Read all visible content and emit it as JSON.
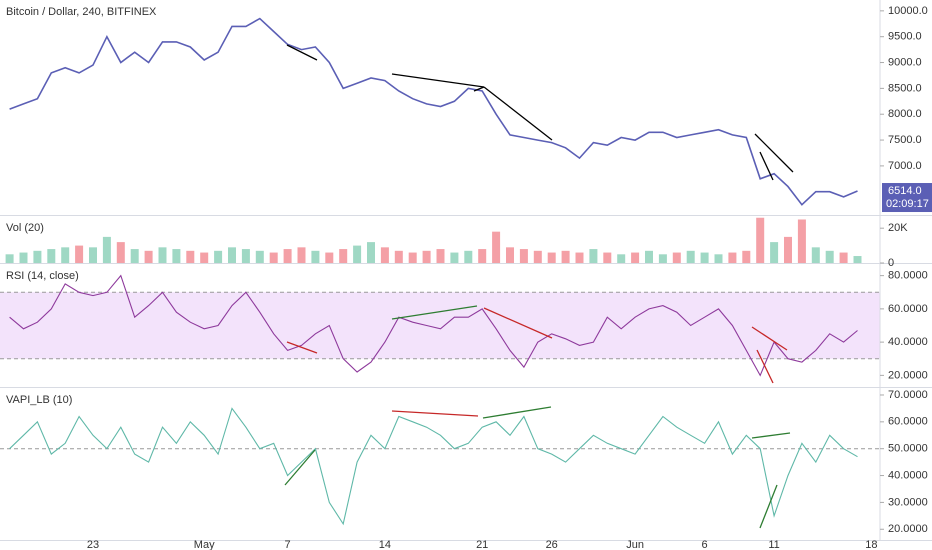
{
  "chart_data": [
    {
      "type": "line",
      "title": "Bitcoin / Dollar, 240, BITFINEX",
      "color": "#5b5fb5",
      "categories": [
        null,
        null,
        null,
        null,
        null,
        null,
        "23",
        null,
        null,
        null,
        null,
        null,
        null,
        null,
        "May",
        null,
        null,
        null,
        null,
        null,
        "7",
        null,
        null,
        null,
        null,
        null,
        null,
        "14",
        null,
        null,
        null,
        null,
        null,
        null,
        "21",
        null,
        null,
        null,
        null,
        "26",
        null,
        null,
        null,
        null,
        null,
        "Jun",
        null,
        null,
        null,
        null,
        "6",
        null,
        null,
        null,
        null,
        "11",
        null,
        null,
        null,
        null,
        null,
        null,
        "18"
      ],
      "values": [
        8100,
        8200,
        8300,
        8800,
        8900,
        8800,
        8950,
        9500,
        9000,
        9200,
        9000,
        9400,
        9400,
        9300,
        9050,
        9200,
        9700,
        9700,
        9850,
        9600,
        9350,
        9250,
        9300,
        9000,
        8500,
        8600,
        8700,
        8650,
        8450,
        8300,
        8200,
        8150,
        8250,
        8500,
        8450,
        8000,
        7600,
        7550,
        7500,
        7450,
        7350,
        7150,
        7450,
        7400,
        7550,
        7500,
        7650,
        7650,
        7550,
        7600,
        7650,
        7700,
        7600,
        7550,
        6750,
        6850,
        6600,
        6250,
        6500,
        6500,
        6400,
        6514,
        null
      ],
      "ylim": [
        6050,
        10210
      ],
      "yticks": [
        {
          "value": 7000,
          "label": "7000.0"
        },
        {
          "value": 7500,
          "label": "7500.0"
        },
        {
          "value": 8000,
          "label": "8000.0"
        },
        {
          "value": 8500,
          "label": "8500.0"
        },
        {
          "value": 9000,
          "label": "9000.0"
        },
        {
          "value": 9500,
          "label": "9500.0"
        },
        {
          "value": 10000,
          "label": "10000.0"
        }
      ],
      "price_tag": "6514.0",
      "countdown": "02:09:17"
    },
    {
      "type": "bar",
      "title": "Vol (20)",
      "up_color": "#9fd8c4",
      "down_color": "#f4a0a6",
      "values": [
        5000,
        6000,
        7000,
        8000,
        9000,
        10000,
        9000,
        15000,
        12000,
        8000,
        7000,
        9000,
        8000,
        7000,
        6000,
        7000,
        9000,
        8000,
        7000,
        6000,
        8000,
        9000,
        7000,
        6000,
        8000,
        10000,
        12000,
        9000,
        7000,
        6000,
        7000,
        8000,
        6000,
        7000,
        8000,
        18000,
        9000,
        8000,
        7000,
        6000,
        7000,
        6000,
        8000,
        6000,
        5000,
        6000,
        7000,
        5000,
        6000,
        7000,
        6000,
        5000,
        6000,
        7000,
        26000,
        12000,
        15000,
        25000,
        9000,
        7000,
        6000,
        4000,
        null
      ],
      "ylim": [
        0,
        27000
      ],
      "yticks": [
        0,
        {
          "value": 20000,
          "label": "20K"
        }
      ]
    },
    {
      "type": "line",
      "title": "RSI (14, close)",
      "color": "#8e3a9c",
      "band": [
        30,
        70
      ],
      "band_color": "#f3e3fb",
      "values": [
        55,
        48,
        52,
        60,
        75,
        70,
        68,
        70,
        80,
        55,
        62,
        70,
        58,
        52,
        48,
        50,
        62,
        70,
        58,
        45,
        35,
        38,
        45,
        50,
        30,
        22,
        28,
        40,
        55,
        52,
        50,
        48,
        55,
        55,
        60,
        48,
        35,
        25,
        40,
        45,
        42,
        38,
        40,
        55,
        48,
        55,
        60,
        62,
        58,
        50,
        55,
        60,
        50,
        35,
        20,
        40,
        30,
        28,
        35,
        45,
        40,
        47,
        null
      ],
      "ylim": [
        13,
        87
      ],
      "yticks": [
        {
          "value": 20,
          "label": "20.0000"
        },
        {
          "value": 40,
          "label": "40.0000"
        },
        {
          "value": 60,
          "label": "60.0000"
        },
        {
          "value": 80,
          "label": "80.0000"
        }
      ]
    },
    {
      "type": "line",
      "title": "VAPI_LB (10)",
      "color": "#5fb8a8",
      "midline": 50,
      "values": [
        50,
        55,
        60,
        48,
        52,
        62,
        55,
        50,
        58,
        48,
        45,
        58,
        52,
        60,
        55,
        48,
        65,
        58,
        50,
        52,
        40,
        45,
        50,
        30,
        22,
        45,
        55,
        50,
        62,
        60,
        58,
        55,
        50,
        52,
        58,
        60,
        55,
        62,
        50,
        48,
        45,
        50,
        55,
        52,
        50,
        48,
        55,
        62,
        58,
        55,
        52,
        60,
        48,
        55,
        50,
        25,
        40,
        52,
        45,
        55,
        50,
        47,
        null
      ],
      "ylim": [
        16,
        72.6
      ],
      "yticks": [
        {
          "value": 20,
          "label": "20.0000"
        },
        {
          "value": 30,
          "label": "30.0000"
        },
        {
          "value": 40,
          "label": "40.0000"
        },
        {
          "value": 50,
          "label": "50.0000"
        },
        {
          "value": 60,
          "label": "60.0000"
        },
        {
          "value": 70,
          "label": "70.0000"
        }
      ]
    }
  ]
}
